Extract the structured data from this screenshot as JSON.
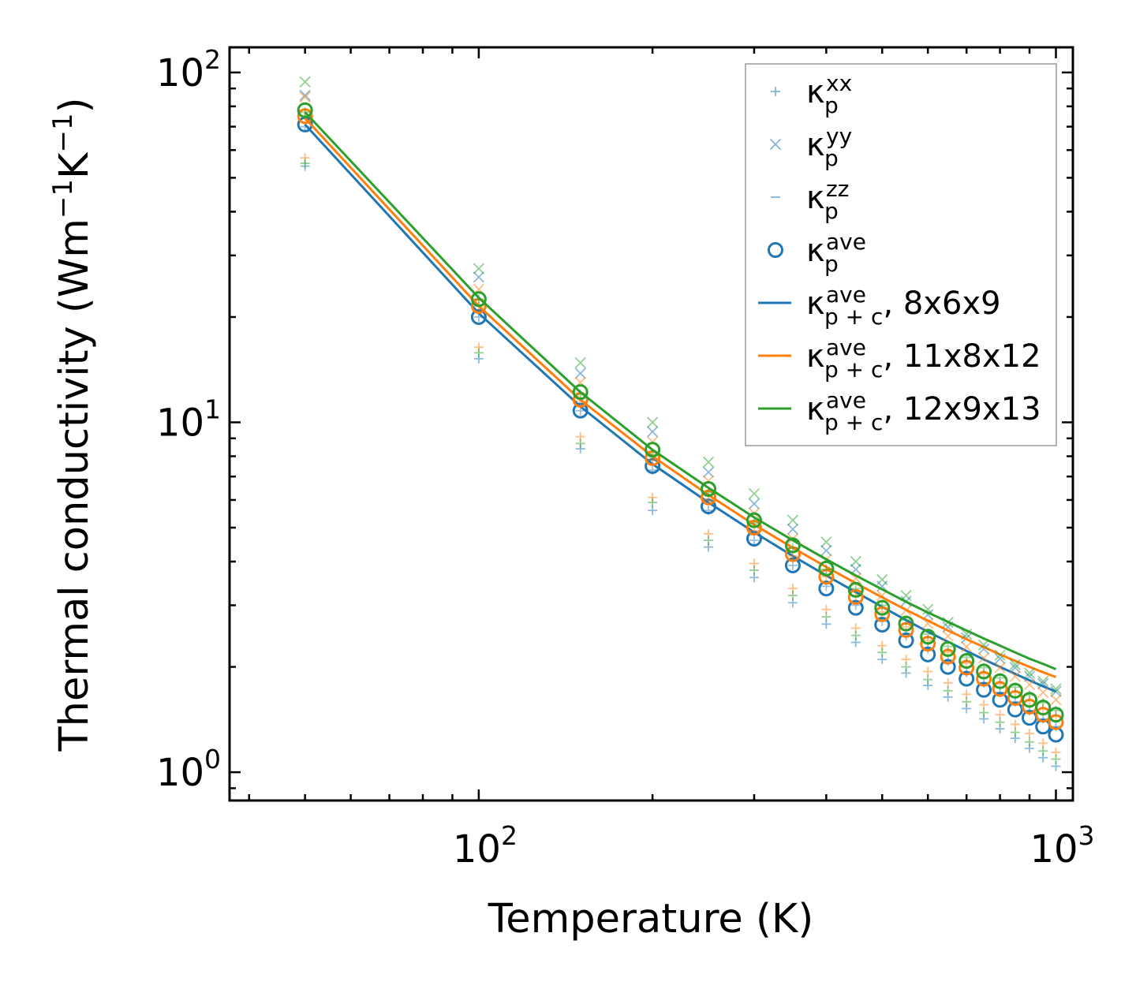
{
  "chart_data": {
    "type": "scatter",
    "title": "",
    "xlabel": "Temperature (K)",
    "ylabel_main": "Thermal conductivity (Wm",
    "ylabel_sup1": "−1",
    "ylabel_mid": "K",
    "ylabel_sup2": "−1",
    "ylabel_end": ")",
    "xscale": "log",
    "yscale": "log",
    "xlim": [
      37,
      1070
    ],
    "ylim": [
      0.83,
      118
    ],
    "x_major_ticks": [
      {
        "value": 100,
        "base": "10",
        "exp": "2"
      },
      {
        "value": 1000,
        "base": "10",
        "exp": "3"
      }
    ],
    "y_major_ticks": [
      {
        "value": 1,
        "base": "10",
        "exp": "0"
      },
      {
        "value": 10,
        "base": "10",
        "exp": "1"
      },
      {
        "value": 100,
        "base": "10",
        "exp": "2"
      }
    ],
    "legend_position": "top-right",
    "legend": [
      {
        "key": "kxx",
        "base": "κ",
        "sub": "p",
        "sup": "xx",
        "suffix": "",
        "marker": "plus",
        "color": "#1f77b4"
      },
      {
        "key": "kyy",
        "base": "κ",
        "sub": "p",
        "sup": "yy",
        "suffix": "",
        "marker": "x",
        "color": "#1f77b4"
      },
      {
        "key": "kzz",
        "base": "κ",
        "sub": "p",
        "sup": "zz",
        "suffix": "",
        "marker": "dash",
        "color": "#1f77b4"
      },
      {
        "key": "kave",
        "base": "κ",
        "sub": "p",
        "sup": "ave",
        "suffix": "",
        "marker": "circle",
        "color": "#1f77b4"
      },
      {
        "key": "line1",
        "base": "κ",
        "sub": "p + c",
        "sup": "ave",
        "suffix": ", 8x6x9",
        "marker": "line",
        "color": "#1f77b4"
      },
      {
        "key": "line2",
        "base": "κ",
        "sub": "p + c",
        "sup": "ave",
        "suffix": ", 11x8x12",
        "marker": "line",
        "color": "#ff7f0e"
      },
      {
        "key": "line3",
        "base": "κ",
        "sub": "p + c",
        "sup": "ave",
        "suffix": ", 12x9x13",
        "marker": "line",
        "color": "#2ca02c"
      }
    ],
    "x": [
      50,
      100,
      150,
      200,
      250,
      300,
      350,
      400,
      450,
      500,
      550,
      600,
      650,
      700,
      750,
      800,
      850,
      900,
      950,
      1000
    ],
    "series": [
      {
        "name": "8x6x9",
        "color": "#1f77b4",
        "kappa_xx": [
          54,
          15.2,
          8.4,
          5.6,
          4.4,
          3.6,
          3.05,
          2.65,
          2.35,
          2.1,
          1.92,
          1.77,
          1.64,
          1.52,
          1.42,
          1.33,
          1.25,
          1.17,
          1.1,
          1.04
        ],
        "kappa_yy": [
          86,
          26,
          13.8,
          9.4,
          7.2,
          5.85,
          4.95,
          4.3,
          3.8,
          3.4,
          3.08,
          2.82,
          2.6,
          2.42,
          2.25,
          2.11,
          1.99,
          1.88,
          1.79,
          1.7
        ],
        "kappa_zz": [
          70,
          20,
          10.8,
          7.3,
          5.6,
          4.6,
          3.9,
          3.4,
          3.0,
          2.7,
          2.45,
          2.25,
          2.08,
          1.93,
          1.8,
          1.69,
          1.59,
          1.5,
          1.42,
          1.35
        ],
        "kappa_ave": [
          71,
          20,
          10.8,
          7.5,
          5.75,
          4.65,
          3.9,
          3.35,
          2.95,
          2.64,
          2.38,
          2.17,
          2.0,
          1.85,
          1.72,
          1.61,
          1.51,
          1.43,
          1.35,
          1.28
        ],
        "kappa_pc": [
          71,
          20.5,
          11.1,
          7.6,
          5.9,
          4.85,
          4.15,
          3.65,
          3.27,
          2.97,
          2.72,
          2.52,
          2.36,
          2.22,
          2.1,
          2.0,
          1.91,
          1.83,
          1.76,
          1.7
        ]
      },
      {
        "name": "11x8x12",
        "color": "#ff7f0e",
        "kappa_xx": [
          57,
          16.4,
          9.1,
          6.1,
          4.8,
          3.95,
          3.35,
          2.92,
          2.58,
          2.3,
          2.1,
          1.94,
          1.8,
          1.67,
          1.56,
          1.46,
          1.37,
          1.29,
          1.21,
          1.14
        ],
        "kappa_yy": [
          85,
          24,
          13,
          8.8,
          6.8,
          5.5,
          4.65,
          4.05,
          3.58,
          3.2,
          2.9,
          2.66,
          2.45,
          2.28,
          2.12,
          1.99,
          1.88,
          1.78,
          1.69,
          1.61
        ],
        "kappa_zz": [
          75,
          21.5,
          11.5,
          7.8,
          6.0,
          4.9,
          4.15,
          3.62,
          3.2,
          2.87,
          2.6,
          2.38,
          2.2,
          2.05,
          1.91,
          1.79,
          1.69,
          1.6,
          1.52,
          1.45
        ],
        "kappa_ave": [
          75,
          21.5,
          11.6,
          7.9,
          6.1,
          5.0,
          4.2,
          3.62,
          3.17,
          2.83,
          2.55,
          2.33,
          2.14,
          1.99,
          1.85,
          1.73,
          1.63,
          1.54,
          1.46,
          1.39
        ],
        "kappa_pc": [
          74,
          21.5,
          11.6,
          8.0,
          6.2,
          5.1,
          4.38,
          3.86,
          3.47,
          3.16,
          2.91,
          2.71,
          2.54,
          2.4,
          2.28,
          2.17,
          2.08,
          2.0,
          1.93,
          1.87
        ]
      },
      {
        "name": "12x9x13",
        "color": "#2ca02c",
        "kappa_xx": [
          55,
          15.8,
          8.7,
          5.9,
          4.6,
          3.78,
          3.2,
          2.78,
          2.46,
          2.2,
          2.0,
          1.84,
          1.71,
          1.59,
          1.48,
          1.39,
          1.3,
          1.22,
          1.15,
          1.09
        ],
        "kappa_yy": [
          94,
          27.5,
          14.8,
          10,
          7.7,
          6.25,
          5.25,
          4.55,
          4.0,
          3.55,
          3.2,
          2.92,
          2.68,
          2.48,
          2.31,
          2.16,
          2.03,
          1.92,
          1.82,
          1.73
        ],
        "kappa_zz": [
          77,
          22.5,
          12,
          8.1,
          6.3,
          5.15,
          4.38,
          3.8,
          3.35,
          3.0,
          2.72,
          2.48,
          2.29,
          2.13,
          1.99,
          1.86,
          1.75,
          1.66,
          1.58,
          1.5
        ],
        "kappa_ave": [
          78,
          22.5,
          12.2,
          8.35,
          6.45,
          5.25,
          4.45,
          3.82,
          3.32,
          2.95,
          2.66,
          2.44,
          2.25,
          2.08,
          1.94,
          1.82,
          1.71,
          1.61,
          1.53,
          1.46
        ],
        "kappa_pc": [
          77,
          22.7,
          12.2,
          8.35,
          6.5,
          5.35,
          4.6,
          4.06,
          3.65,
          3.33,
          3.07,
          2.86,
          2.69,
          2.54,
          2.41,
          2.3,
          2.2,
          2.11,
          2.04,
          1.97
        ]
      }
    ]
  }
}
